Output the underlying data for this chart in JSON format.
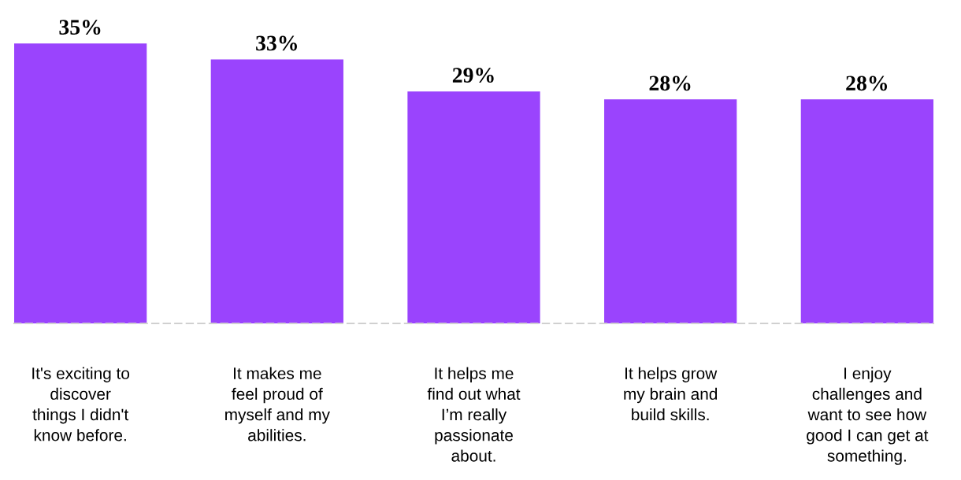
{
  "chart_data": {
    "type": "bar",
    "categories": [
      "It's exciting to\ndiscover\nthings I didn't\nknow before.",
      "It makes me\nfeel proud of\nmyself and my\nabilities.",
      "It helps me\nfind out what\nI’m really\npassionate\nabout.",
      "It helps grow\nmy brain and\nbuild skills.",
      "I enjoy\nchallenges and\nwant to see how\ngood I can get at\nsomething."
    ],
    "values": [
      35,
      33,
      29,
      28,
      28
    ],
    "value_labels": [
      "35%",
      "33%",
      "29%",
      "28%",
      "28%"
    ],
    "color": "#9a44fd",
    "grid": false,
    "legend": false
  }
}
